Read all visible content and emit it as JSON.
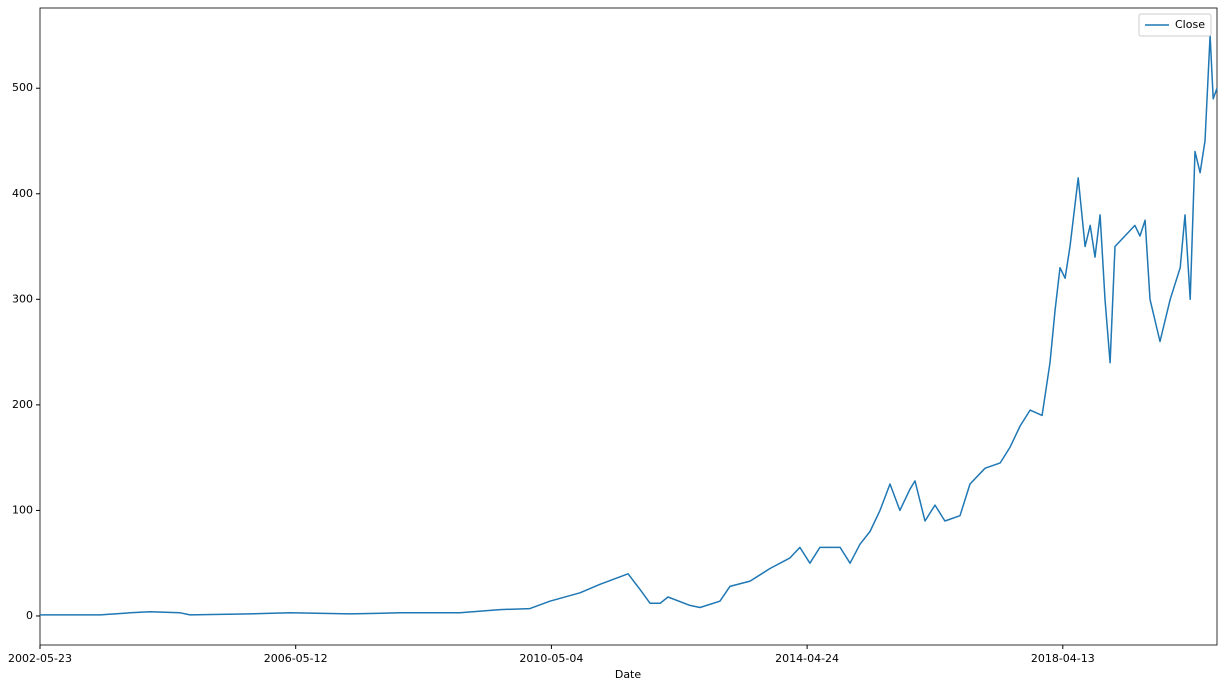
{
  "chart_data": {
    "type": "line",
    "x_label": "Date",
    "x": [
      0,
      235,
      352,
      430,
      548,
      587,
      821,
      978,
      1212,
      1408,
      1642,
      1799,
      1916,
      1994,
      2112,
      2190,
      2300,
      2347,
      2386,
      2425,
      2456,
      2542,
      2581,
      2659,
      2698,
      2777,
      2855,
      2933,
      2972,
      3011,
      3050,
      3129,
      3168,
      3207,
      3246,
      3285,
      3324,
      3363,
      3402,
      3422,
      3461,
      3500,
      3539,
      3598,
      3637,
      3696,
      3755,
      3794,
      3833,
      3872,
      3919,
      3950,
      3970,
      3989,
      4009,
      4028,
      4060,
      4087,
      4107,
      4126,
      4146,
      4165,
      4185,
      4204,
      4243,
      4282,
      4302,
      4322,
      4341,
      4380,
      4420,
      4459,
      4478,
      4498,
      4517,
      4537,
      4556,
      4576,
      4588,
      4603
    ],
    "series": [
      {
        "name": "Close",
        "color": "#1f77b4",
        "values": [
          1,
          1,
          3,
          4,
          3,
          1,
          2,
          3,
          2,
          3,
          3,
          6,
          7,
          14,
          22,
          30,
          40,
          25,
          12,
          12,
          18,
          10,
          8,
          14,
          28,
          33,
          45,
          55,
          65,
          50,
          65,
          65,
          50,
          68,
          80,
          100,
          125,
          100,
          120,
          128,
          90,
          105,
          90,
          95,
          125,
          140,
          145,
          160,
          180,
          195,
          190,
          240,
          290,
          330,
          320,
          350,
          415,
          350,
          370,
          340,
          380,
          300,
          240,
          350,
          360,
          370,
          360,
          375,
          300,
          260,
          300,
          330,
          380,
          300,
          440,
          420,
          450,
          550,
          490,
          500
        ]
      }
    ],
    "xlim": [
      0,
      4603
    ],
    "xticks": [
      {
        "value": 0,
        "label": "2002-05-23"
      },
      {
        "value": 1000,
        "label": "2006-05-12"
      },
      {
        "value": 2000,
        "label": "2010-05-04"
      },
      {
        "value": 3000,
        "label": "2014-04-24"
      },
      {
        "value": 4000,
        "label": "2018-04-13"
      }
    ],
    "ylim": [
      -27.5,
      576
    ],
    "yticks": [
      0,
      100,
      200,
      300,
      400,
      500
    ],
    "legend": "upper right"
  }
}
